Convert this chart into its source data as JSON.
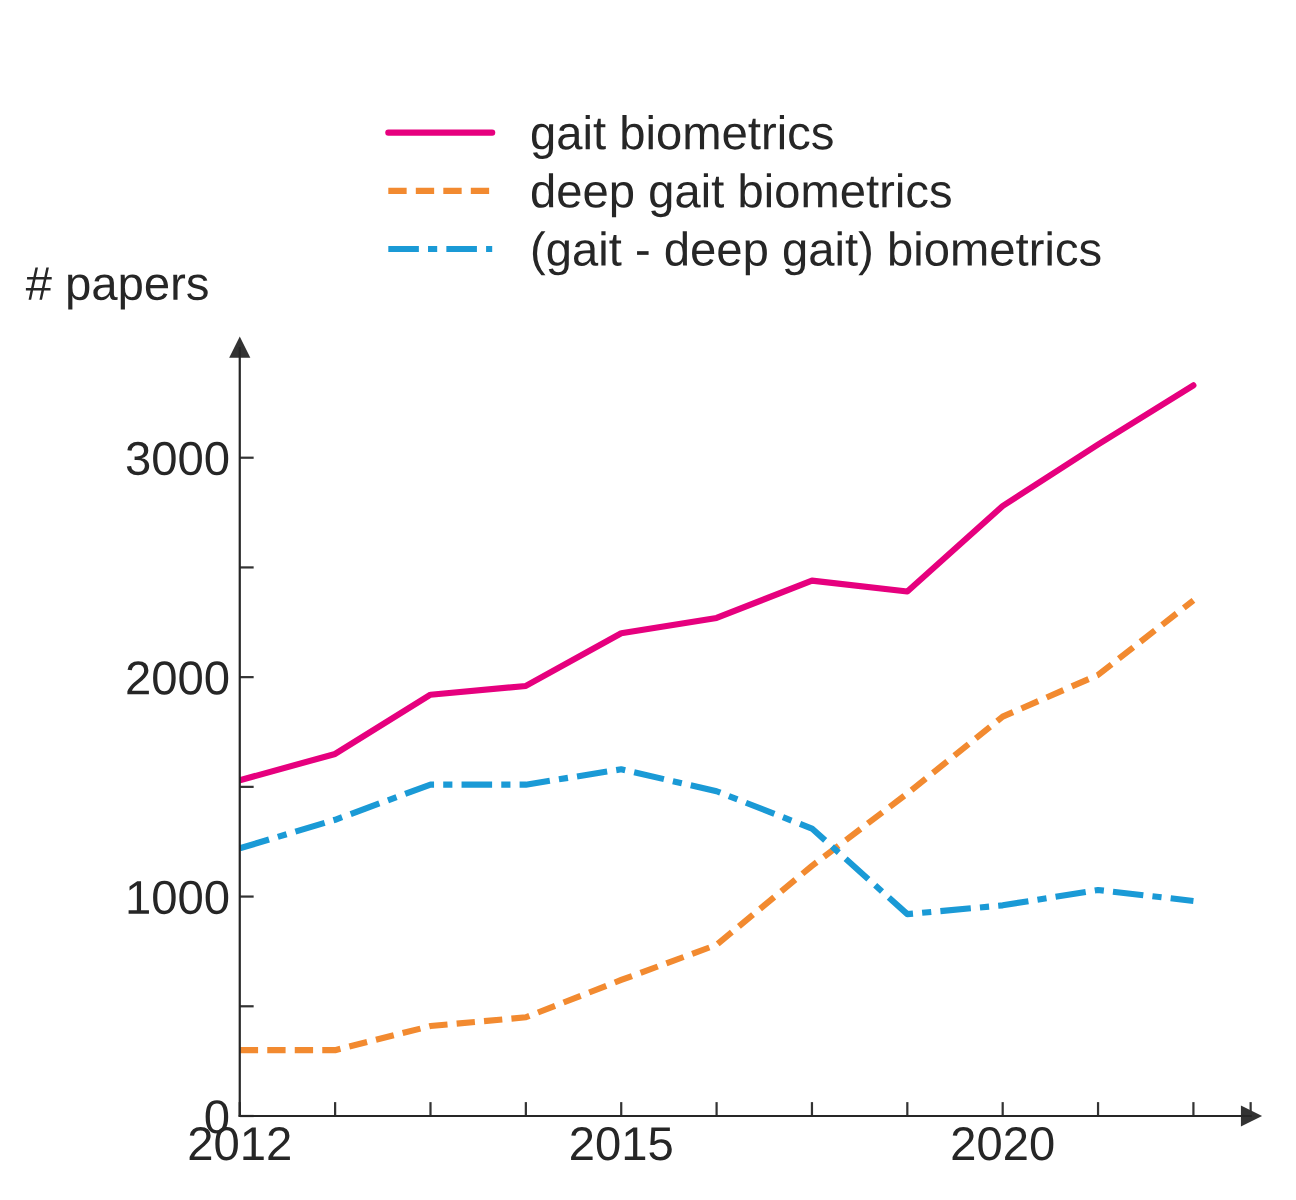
{
  "chart_data": {
    "type": "line",
    "ylabel": "# papers",
    "categories": [
      "2012",
      null,
      null,
      null,
      "2015",
      null,
      null,
      null,
      "2020",
      null,
      null
    ],
    "series": [
      {
        "name": "gait biometrics",
        "color": "#e6007e",
        "line_style": "solid",
        "values": [
          1530,
          1650,
          1920,
          1960,
          2200,
          2270,
          2440,
          2390,
          2780,
          3060,
          3330
        ]
      },
      {
        "name": "deep gait biometrics",
        "color": "#f28a30",
        "line_style": "dashed",
        "values": [
          300,
          300,
          410,
          450,
          620,
          780,
          1140,
          1470,
          1820,
          2010,
          2350
        ]
      },
      {
        "name": "(gait - deep gait) biometrics",
        "color": "#1a9ad6",
        "line_style": "dashdot",
        "values": [
          1220,
          1350,
          1510,
          1510,
          1580,
          1480,
          1310,
          920,
          960,
          1030,
          980
        ]
      }
    ],
    "ylim": [
      0,
      3500
    ],
    "yticks": [
      0,
      {
        "value": 500,
        "label": null
      },
      1000,
      {
        "value": 1500,
        "label": null
      },
      2000,
      {
        "value": 2500,
        "label": null
      },
      3000
    ],
    "grid": false,
    "legend": "top",
    "marker": "none"
  }
}
